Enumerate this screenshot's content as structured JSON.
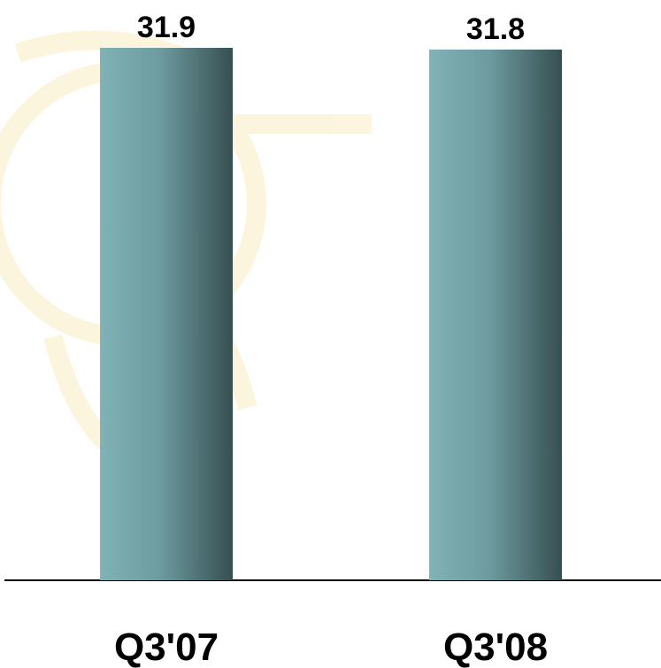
{
  "chart_data": {
    "type": "bar",
    "categories": [
      "Q3'07",
      "Q3'08"
    ],
    "values": [
      31.9,
      31.8
    ],
    "color": "#80b2b6"
  }
}
